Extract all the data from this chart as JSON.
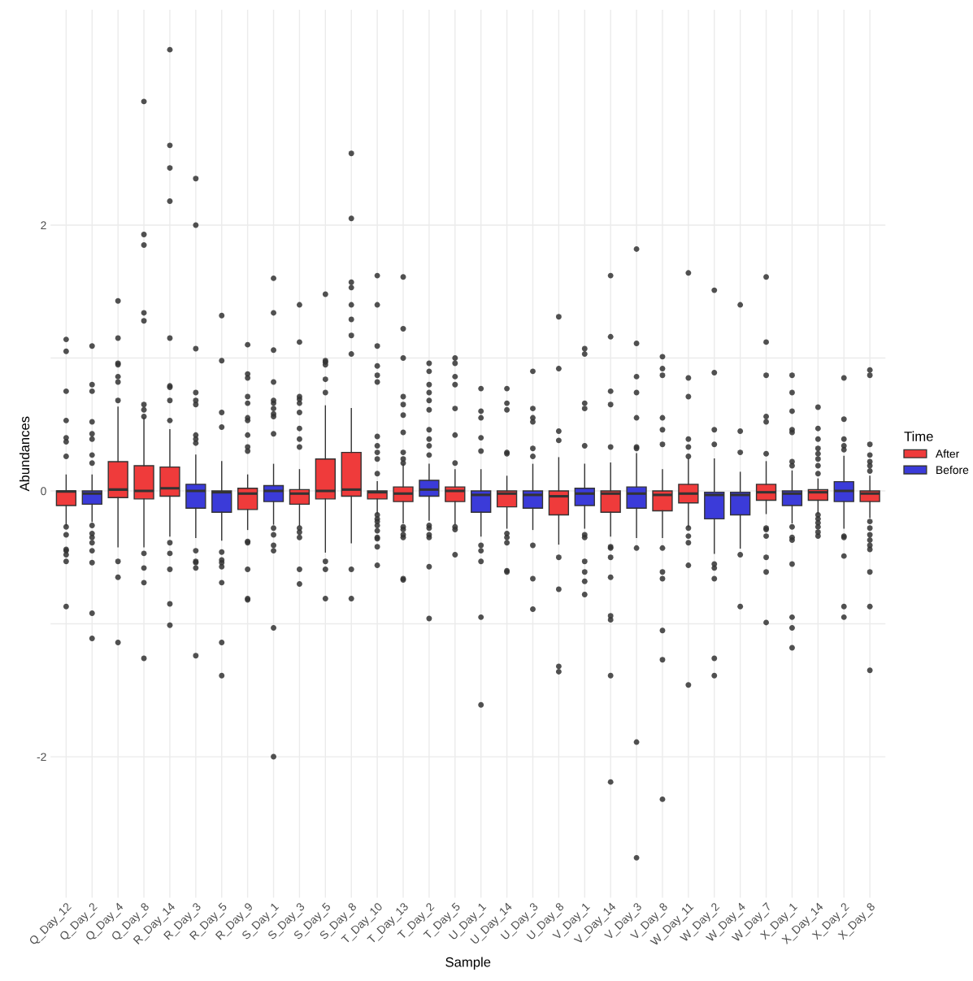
{
  "chart_data": {
    "type": "box",
    "xlabel": "Sample",
    "ylabel": "Abundances",
    "legend_title": "Time",
    "legend": "right",
    "grid": true,
    "categories": [
      "Q_Day_12",
      "Q_Day_2",
      "Q_Day_4",
      "Q_Day_8",
      "R_Day_14",
      "R_Day_3",
      "R_Day_5",
      "R_Day_9",
      "S_Day_1",
      "S_Day_3",
      "S_Day_5",
      "S_Day_8",
      "T_Day_10",
      "T_Day_13",
      "T_Day_2",
      "T_Day_5",
      "U_Day_1",
      "U_Day_14",
      "U_Day_3",
      "U_Day_8",
      "V_Day_1",
      "V_Day_14",
      "V_Day_3",
      "V_Day_8",
      "W_Day_11",
      "W_Day_2",
      "W_Day_4",
      "W_Day_7",
      "X_Day_1",
      "X_Day_14",
      "X_Day_2",
      "X_Day_8"
    ],
    "ylim": [
      -3.06,
      3.62
    ],
    "yticks": [
      -2,
      {
        "value": -1,
        "label": null
      },
      0,
      {
        "value": 1,
        "label": null
      },
      2
    ],
    "series": [
      {
        "name": "After",
        "color": "#ef3b3b",
        "boxes": [
          {
            "low": -0.26,
            "q1": -0.11,
            "median": -0.005,
            "q3": 0.0,
            "high": 0.12,
            "outliers": [
              1.14,
              1.05,
              0.75,
              0.53,
              0.4,
              0.37,
              0.26,
              -0.27,
              -0.33,
              -0.44,
              -0.45,
              -0.48,
              -0.53,
              -0.87
            ]
          },
          null,
          {
            "low": -0.42,
            "q1": -0.05,
            "median": 0.01,
            "q3": 0.22,
            "high": 0.63,
            "outliers": [
              1.43,
              1.15,
              0.96,
              0.95,
              0.86,
              0.82,
              0.68,
              -0.53,
              -0.65,
              -1.14
            ]
          },
          {
            "low": -0.42,
            "q1": -0.06,
            "median": 0.0,
            "q3": 0.19,
            "high": 0.55,
            "outliers": [
              2.93,
              1.93,
              1.85,
              1.34,
              1.28,
              0.65,
              0.61,
              0.56,
              -0.47,
              -0.58,
              -0.69,
              -1.26
            ]
          },
          {
            "low": -0.34,
            "q1": -0.04,
            "median": 0.02,
            "q3": 0.18,
            "high": 0.46,
            "outliers": [
              3.32,
              2.6,
              2.43,
              2.18,
              1.15,
              0.79,
              0.78,
              0.68,
              0.53,
              -0.39,
              -0.47,
              -0.59,
              -0.85,
              -1.01
            ]
          },
          null,
          null,
          {
            "low": -0.29,
            "q1": -0.14,
            "median": -0.02,
            "q3": 0.02,
            "high": 0.12,
            "outliers": [
              1.1,
              0.88,
              0.85,
              0.71,
              0.66,
              0.55,
              0.53,
              0.42,
              0.33,
              0.3,
              -0.38,
              -0.39,
              -0.59,
              -0.81,
              -0.82
            ]
          },
          null,
          {
            "low": -0.26,
            "q1": -0.1,
            "median": -0.02,
            "q3": 0.01,
            "high": 0.16,
            "outliers": [
              1.4,
              1.12,
              0.71,
              0.69,
              0.66,
              0.59,
              0.47,
              0.39,
              0.33,
              -0.28,
              -0.31,
              -0.35,
              -0.59,
              -0.7
            ]
          },
          {
            "low": -0.46,
            "q1": -0.06,
            "median": 0.0,
            "q3": 0.24,
            "high": 0.64,
            "outliers": [
              1.48,
              0.98,
              0.97,
              0.95,
              0.84,
              0.74,
              -0.53,
              -0.59,
              -0.81
            ]
          },
          {
            "low": -0.39,
            "q1": -0.04,
            "median": 0.01,
            "q3": 0.29,
            "high": 0.62,
            "outliers": [
              2.54,
              2.05,
              1.57,
              1.53,
              1.4,
              1.29,
              1.17,
              1.03,
              -0.59,
              -0.81
            ]
          },
          {
            "low": -0.17,
            "q1": -0.06,
            "median": -0.01,
            "q3": 0.0,
            "high": 0.07,
            "outliers": [
              1.62,
              1.4,
              1.09,
              0.94,
              0.87,
              0.82,
              0.41,
              0.34,
              0.29,
              0.24,
              0.13,
              -0.18,
              -0.21,
              -0.23,
              -0.26,
              -0.3,
              -0.35,
              -0.36,
              -0.42,
              -0.56
            ]
          },
          {
            "low": -0.24,
            "q1": -0.08,
            "median": -0.02,
            "q3": 0.03,
            "high": 0.2,
            "outliers": [
              1.61,
              1.22,
              1.0,
              0.71,
              0.65,
              0.57,
              0.44,
              0.29,
              0.24,
              0.21,
              -0.27,
              -0.29,
              -0.33,
              -0.35,
              -0.66,
              -0.67
            ]
          },
          null,
          {
            "low": -0.25,
            "q1": -0.08,
            "median": 0.0,
            "q3": 0.03,
            "high": 0.16,
            "outliers": [
              1.0,
              0.96,
              0.86,
              0.8,
              0.62,
              0.42,
              0.21,
              -0.27,
              -0.29,
              -0.48
            ]
          },
          null,
          {
            "low": -0.28,
            "q1": -0.12,
            "median": -0.02,
            "q3": 0.0,
            "high": 0.11,
            "outliers": [
              0.77,
              0.66,
              0.61,
              0.29,
              0.28,
              -0.32,
              -0.35,
              -0.39,
              -0.6,
              -0.61
            ]
          },
          null,
          {
            "low": -0.4,
            "q1": -0.18,
            "median": -0.04,
            "q3": 0.0,
            "high": 0.25,
            "outliers": [
              1.31,
              0.92,
              0.45,
              0.38,
              -0.5,
              -0.74,
              -1.32,
              -1.36
            ]
          },
          null,
          {
            "low": -0.34,
            "q1": -0.16,
            "median": -0.02,
            "q3": 0.0,
            "high": 0.21,
            "outliers": [
              1.62,
              1.16,
              0.75,
              0.65,
              0.33,
              -0.42,
              -0.43,
              -0.5,
              -0.65,
              -0.94,
              -0.97,
              -1.39,
              -2.19
            ]
          },
          null,
          {
            "low": -0.35,
            "q1": -0.15,
            "median": -0.03,
            "q3": 0.0,
            "high": 0.16,
            "outliers": [
              1.01,
              0.92,
              0.87,
              0.55,
              0.46,
              0.35,
              -0.43,
              -0.61,
              -0.66,
              -1.05,
              -1.27,
              -2.32
            ]
          },
          {
            "low": -0.27,
            "q1": -0.09,
            "median": -0.02,
            "q3": 0.05,
            "high": 0.24,
            "outliers": [
              1.64,
              0.85,
              0.71,
              0.39,
              0.33,
              0.26,
              -0.28,
              -0.34,
              -0.39,
              -0.56,
              -1.46
            ]
          },
          null,
          null,
          {
            "low": -0.17,
            "q1": -0.07,
            "median": -0.01,
            "q3": 0.05,
            "high": 0.22,
            "outliers": [
              1.61,
              1.12,
              0.87,
              0.56,
              0.52,
              0.28,
              -0.28,
              -0.29,
              -0.34,
              -0.5,
              -0.61,
              -0.99
            ]
          },
          null,
          {
            "low": -0.17,
            "q1": -0.07,
            "median": -0.01,
            "q3": 0.01,
            "high": 0.09,
            "outliers": [
              0.63,
              0.47,
              0.39,
              0.32,
              0.28,
              0.24,
              0.19,
              0.13,
              -0.18,
              -0.21,
              -0.24,
              -0.27,
              -0.31,
              -0.34
            ]
          },
          null,
          {
            "low": -0.2,
            "q1": -0.08,
            "median": -0.02,
            "q3": 0.0,
            "high": 0.11,
            "outliers": [
              0.91,
              0.87,
              0.35,
              0.27,
              0.22,
              0.19,
              0.15,
              -0.23,
              -0.28,
              -0.33,
              -0.37,
              -0.41,
              -0.44,
              -0.61,
              -0.87,
              -1.35
            ]
          }
        ]
      },
      {
        "name": "Before",
        "color": "#3b3bd9",
        "boxes": [
          null,
          {
            "low": -0.23,
            "q1": -0.1,
            "median": -0.02,
            "q3": 0.0,
            "high": 0.12,
            "outliers": [
              1.09,
              0.8,
              0.75,
              0.52,
              0.43,
              0.39,
              0.27,
              0.21,
              -0.26,
              -0.32,
              -0.35,
              -0.39,
              -0.45,
              -0.54,
              -0.92,
              -1.11
            ]
          },
          null,
          null,
          null,
          {
            "low": -0.35,
            "q1": -0.13,
            "median": 0.0,
            "q3": 0.05,
            "high": 0.27,
            "outliers": [
              2.35,
              2.0,
              1.07,
              0.74,
              0.68,
              0.65,
              0.42,
              0.39,
              0.36,
              -0.45,
              -0.53,
              -0.54,
              -0.58,
              -1.24
            ]
          },
          {
            "low": -0.37,
            "q1": -0.16,
            "median": -0.01,
            "q3": 0.0,
            "high": 0.22,
            "outliers": [
              1.32,
              0.98,
              0.59,
              0.48,
              -0.46,
              -0.52,
              -0.54,
              -0.57,
              -0.69,
              -1.14,
              -1.39
            ]
          },
          null,
          {
            "low": -0.25,
            "q1": -0.08,
            "median": 0.0,
            "q3": 0.04,
            "high": 0.2,
            "outliers": [
              1.6,
              1.34,
              1.06,
              0.82,
              0.68,
              0.66,
              0.62,
              0.58,
              0.56,
              0.43,
              -0.28,
              -0.33,
              -0.41,
              -0.45,
              -1.03,
              -2.0
            ]
          },
          null,
          null,
          null,
          null,
          null,
          {
            "low": -0.22,
            "q1": -0.04,
            "median": 0.01,
            "q3": 0.08,
            "high": 0.2,
            "outliers": [
              0.96,
              0.9,
              0.8,
              0.74,
              0.68,
              0.61,
              0.46,
              0.39,
              0.34,
              0.27,
              -0.26,
              -0.28,
              -0.33,
              -0.35,
              -0.57,
              -0.96
            ]
          },
          null,
          {
            "low": -0.34,
            "q1": -0.16,
            "median": -0.03,
            "q3": 0.0,
            "high": 0.16,
            "outliers": [
              0.77,
              0.6,
              0.55,
              0.4,
              0.3,
              -0.41,
              -0.45,
              -0.53,
              -0.95,
              -1.61
            ]
          },
          null,
          {
            "low": -0.29,
            "q1": -0.13,
            "median": -0.03,
            "q3": 0.0,
            "high": 0.2,
            "outliers": [
              0.9,
              0.62,
              0.55,
              0.52,
              0.32,
              0.26,
              -0.41,
              -0.66,
              -0.89
            ]
          },
          null,
          {
            "low": -0.28,
            "q1": -0.11,
            "median": -0.02,
            "q3": 0.02,
            "high": 0.2,
            "outliers": [
              1.07,
              1.03,
              0.66,
              0.62,
              0.34,
              -0.33,
              -0.35,
              -0.53,
              -0.61,
              -0.68,
              -0.78
            ]
          },
          null,
          {
            "low": -0.35,
            "q1": -0.13,
            "median": -0.02,
            "q3": 0.03,
            "high": 0.28,
            "outliers": [
              1.82,
              1.11,
              0.86,
              0.74,
              0.55,
              0.33,
              0.32,
              -0.43,
              -1.89,
              -2.76
            ]
          },
          null,
          null,
          {
            "low": -0.47,
            "q1": -0.21,
            "median": -0.03,
            "q3": -0.01,
            "high": 0.24,
            "outliers": [
              1.51,
              0.89,
              0.46,
              0.35,
              -0.55,
              -0.58,
              -0.66,
              -1.26,
              -1.39
            ]
          },
          {
            "low": -0.43,
            "q1": -0.18,
            "median": -0.03,
            "q3": -0.01,
            "high": 0.14,
            "outliers": [
              1.4,
              0.45,
              0.29,
              -0.48,
              -0.87
            ]
          },
          null,
          {
            "low": -0.24,
            "q1": -0.11,
            "median": -0.02,
            "q3": 0.0,
            "high": 0.15,
            "outliers": [
              0.87,
              0.74,
              0.6,
              0.46,
              0.44,
              0.22,
              0.19,
              -0.27,
              -0.35,
              -0.37,
              -0.55,
              -0.95,
              -1.03,
              -1.18
            ]
          },
          null,
          {
            "low": -0.28,
            "q1": -0.08,
            "median": 0.0,
            "q3": 0.07,
            "high": 0.26,
            "outliers": [
              0.85,
              0.54,
              0.39,
              0.34,
              0.31,
              -0.34,
              -0.35,
              -0.49,
              -0.87,
              -0.95
            ]
          },
          null
        ]
      }
    ]
  }
}
